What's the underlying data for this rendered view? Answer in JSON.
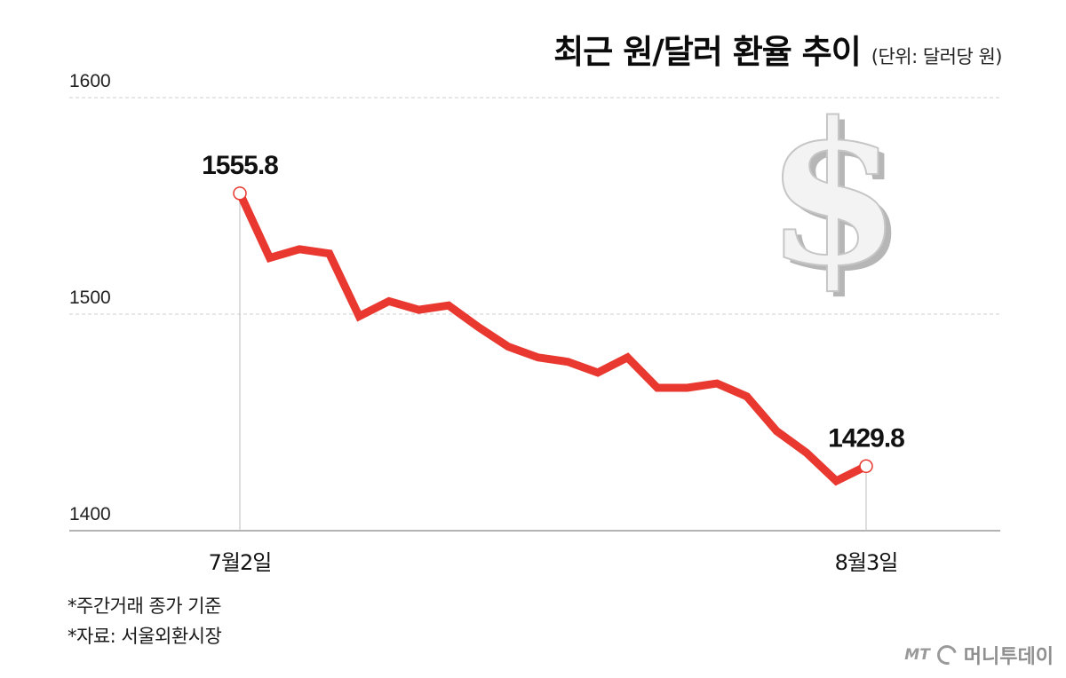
{
  "title": "최근 원/달러 환율 추이",
  "unit_label": "(단위: 달러당 원)",
  "footnotes": [
    "*주간거래 종가 기준",
    "*자료: 서울외환시장"
  ],
  "brand": {
    "mark": "MT",
    "name": "머니투데이"
  },
  "colors": {
    "line": "#e8382f",
    "grid": "#cfcfcf",
    "axis": "#9a9a9a"
  },
  "chart_data": {
    "type": "line",
    "title": "최근 원/달러 환율 추이",
    "ylabel": "(단위: 달러당 원)",
    "xlabel": "",
    "ylim": [
      1400,
      1600
    ],
    "yticks": [
      1400,
      1500,
      1600
    ],
    "xtick_labels": [
      {
        "index": 0,
        "label": "7월2일"
      },
      {
        "index": 21,
        "label": "8월3일"
      }
    ],
    "grid": true,
    "decoration": "dollar-sign-icon",
    "values": [
      1555.8,
      1526,
      1530,
      1528,
      1499,
      1506,
      1502,
      1504,
      1494,
      1485,
      1480,
      1478,
      1473,
      1480,
      1466,
      1466,
      1468,
      1462,
      1446,
      1436,
      1423,
      1429.8
    ],
    "annotations": [
      {
        "index": 0,
        "label": "1555.8"
      },
      {
        "index": 21,
        "label": "1429.8"
      }
    ]
  }
}
